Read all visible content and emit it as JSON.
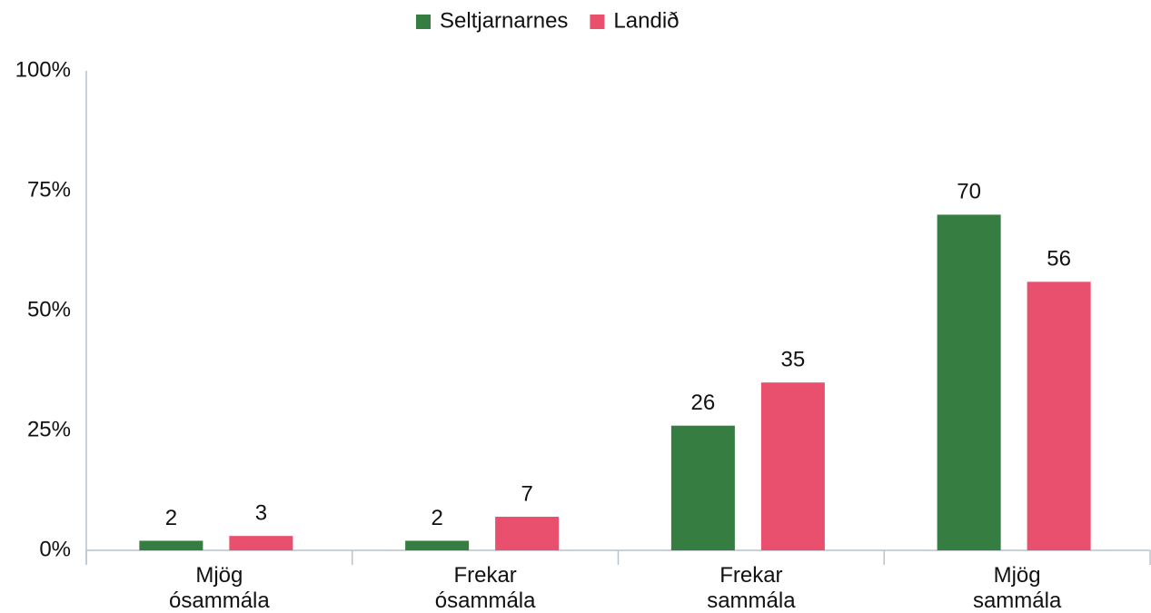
{
  "chart_data": {
    "type": "bar",
    "categories": [
      "Mjög ósammála",
      "Frekar ósammála",
      "Frekar sammála",
      "Mjög sammála"
    ],
    "series": [
      {
        "name": "Seltjarnarnes",
        "color": "#367d41",
        "values": [
          2,
          2,
          26,
          70
        ]
      },
      {
        "name": "Landið",
        "color": "#e8506e",
        "values": [
          3,
          7,
          35,
          56
        ]
      }
    ],
    "ylim": [
      0,
      100
    ],
    "yticks": [
      {
        "value": 0,
        "label": "0%"
      },
      {
        "value": 25,
        "label": "25%"
      },
      {
        "value": 50,
        "label": "50%"
      },
      {
        "value": 75,
        "label": "75%"
      },
      {
        "value": 100,
        "label": "100%"
      }
    ],
    "grid": false,
    "legend": "top"
  }
}
